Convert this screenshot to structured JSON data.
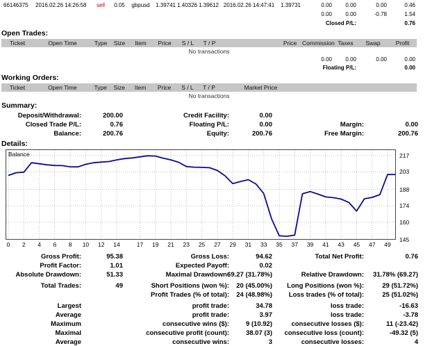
{
  "colors": {
    "line": "#0a0a96",
    "sell_text": "#c00000",
    "header_bg": "#c6c6c6"
  },
  "closed_trades": {
    "row": {
      "ticket": "66146375",
      "open_time": "2016.02.26 14:26:58",
      "type": "sell",
      "size": "0.05",
      "item": "gbpusd",
      "price": "1.39741",
      "sl": "1.40326",
      "tp": "1.39612",
      "close_time": "2016.02.26 14:47:41",
      "close_price": "1.39731",
      "commission": "0.00",
      "taxes": "0.00",
      "swap": "0.00",
      "profit": "0.46"
    },
    "totals": {
      "commission": "0.00",
      "taxes": "0.00",
      "swap": "-0.78",
      "profit": "1.54"
    },
    "closed_pl_label": "Closed P/L:",
    "closed_pl_value": "0.76"
  },
  "open_trades": {
    "heading": "Open Trades:",
    "headers": [
      "Ticket",
      "Open Time",
      "Type",
      "Size",
      "Item",
      "Price",
      "S / L",
      "T / P",
      "",
      "Price",
      "Commission",
      "Taxes",
      "Swap",
      "Profit"
    ],
    "empty": "No transactions",
    "totals": {
      "commission": "0.00",
      "taxes": "0.00",
      "swap": "0.00",
      "profit": "0.00"
    },
    "floating_pl_label": "Floating P/L:",
    "floating_pl_value": "0.00"
  },
  "working_orders": {
    "heading": "Working Orders:",
    "headers": [
      "Ticket",
      "Open Time",
      "Type",
      "Size",
      "Item",
      "Price",
      "S / L",
      "T / P",
      "Market Price"
    ],
    "empty": "No transactions"
  },
  "summary": {
    "heading": "Summary:",
    "rows": [
      [
        "Deposit/Withdrawal:",
        "200.00",
        "Credit Facility:",
        "0.00",
        "",
        ""
      ],
      [
        "Closed Trade P/L:",
        "0.76",
        "Floating P/L:",
        "0.00",
        "Margin:",
        "0.00"
      ],
      [
        "Balance:",
        "200.76",
        "Equity:",
        "200.76",
        "Free Margin:",
        "200.76"
      ]
    ]
  },
  "details": {
    "heading": "Details:"
  },
  "chart_data": {
    "type": "line",
    "title": "",
    "legend": "Balance",
    "xlim": [
      0,
      49
    ],
    "ylim": [
      145,
      222
    ],
    "x_ticks": [
      0,
      2,
      4,
      6,
      8,
      10,
      12,
      14,
      17,
      19,
      21,
      23,
      25,
      27,
      29,
      31,
      33,
      35,
      37,
      39,
      41,
      43,
      45,
      47,
      49
    ],
    "y_ticks": [
      145,
      160,
      174,
      188,
      203,
      217
    ],
    "series": [
      {
        "name": "Balance",
        "color": "#0a0a96",
        "values": [
          200.0,
          202.3,
          202.8,
          210.9,
          210.0,
          209.1,
          208.5,
          208.4,
          207.4,
          207.3,
          209.5,
          210.9,
          211.4,
          211.9,
          213.3,
          214.4,
          215.0,
          215.9,
          216.8,
          216.6,
          214.8,
          213.3,
          211.3,
          207.6,
          207.1,
          206.9,
          206.6,
          204.2,
          199.7,
          193.0,
          194.8,
          196.4,
          192.6,
          184.5,
          163.0,
          148.4,
          147.9,
          149.0,
          184.3,
          186.2,
          184.0,
          181.6,
          181.0,
          179.8,
          176.9,
          169.5,
          180.0,
          181.2,
          183.6,
          200.76
        ]
      }
    ]
  },
  "stats": {
    "groups": [
      [
        [
          "Gross Profit:",
          "95.38",
          "Gross Loss:",
          "94.62",
          "Total Net Profit:",
          "0.76"
        ],
        [
          "Profit Factor:",
          "1.01",
          "Expected Payoff:",
          "0.02",
          "",
          ""
        ],
        [
          "Absolute Drawdown:",
          "51.33",
          "Maximal Drawdown:",
          "69.27 (31.78%)",
          "Relative Drawdown:",
          "31.78% (69.27)"
        ]
      ],
      [
        [
          "Total Trades:",
          "49",
          "Short Positions (won %):",
          "20 (45.00%)",
          "Long Positions (won %):",
          "29 (51.72%)"
        ],
        [
          "",
          "",
          "Profit Trades (% of total):",
          "24 (48.98%)",
          "Loss trades (% of total):",
          "25 (51.02%)"
        ]
      ],
      [
        [
          "Largest",
          "",
          "profit trade:",
          "34.78",
          "loss trade:",
          "-16.63"
        ],
        [
          "Average",
          "",
          "profit trade:",
          "3.97",
          "loss trade:",
          "-3.78"
        ],
        [
          "Maximum",
          "",
          "consecutive wins ($):",
          "9 (10.92)",
          "consecutive losses ($):",
          "11 (-23.42)"
        ],
        [
          "Maximal",
          "",
          "consecutive profit (count):",
          "38.07 (3)",
          "consecutive loss (count):",
          "-49.32 (5)"
        ],
        [
          "Average",
          "",
          "consecutive wins:",
          "3",
          "consecutive losses:",
          "4"
        ]
      ]
    ]
  }
}
